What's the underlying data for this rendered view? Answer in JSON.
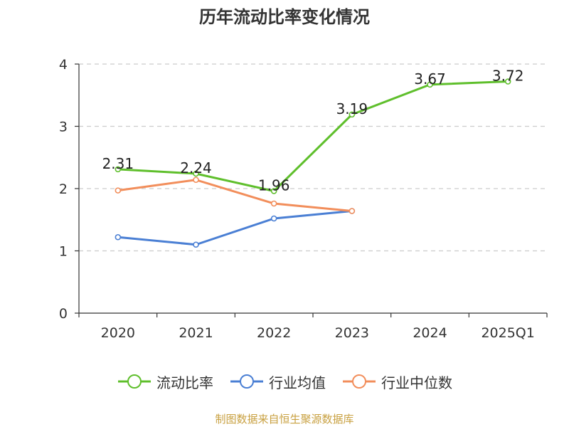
{
  "title": "历年流动比率变化情况",
  "source": "制图数据来自恒生聚源数据库",
  "colors": {
    "grid": "#cccccc",
    "axis": "#333333"
  },
  "chart_data": {
    "type": "line",
    "title": "历年流动比率变化情况",
    "xlabel": "",
    "ylabel": "",
    "categories": [
      "2020",
      "2021",
      "2022",
      "2023",
      "2024",
      "2025Q1"
    ],
    "ylim": [
      0,
      4
    ],
    "yticks": [
      0,
      1,
      2,
      3,
      4
    ],
    "grid": true,
    "legend_position": "bottom",
    "series": [
      {
        "name": "流动比率",
        "color": "#5fbf2c",
        "values": [
          2.31,
          2.24,
          1.96,
          3.19,
          3.67,
          3.72
        ],
        "labels": [
          "2.31",
          "2.24",
          "1.96",
          "3.19",
          "3.67",
          "3.72"
        ]
      },
      {
        "name": "行业均值",
        "color": "#4a7fd4",
        "values": [
          1.22,
          1.1,
          1.52,
          1.64,
          null,
          null
        ]
      },
      {
        "name": "行业中位数",
        "color": "#f28e5b",
        "values": [
          1.97,
          2.14,
          1.76,
          1.64,
          null,
          null
        ]
      }
    ]
  }
}
